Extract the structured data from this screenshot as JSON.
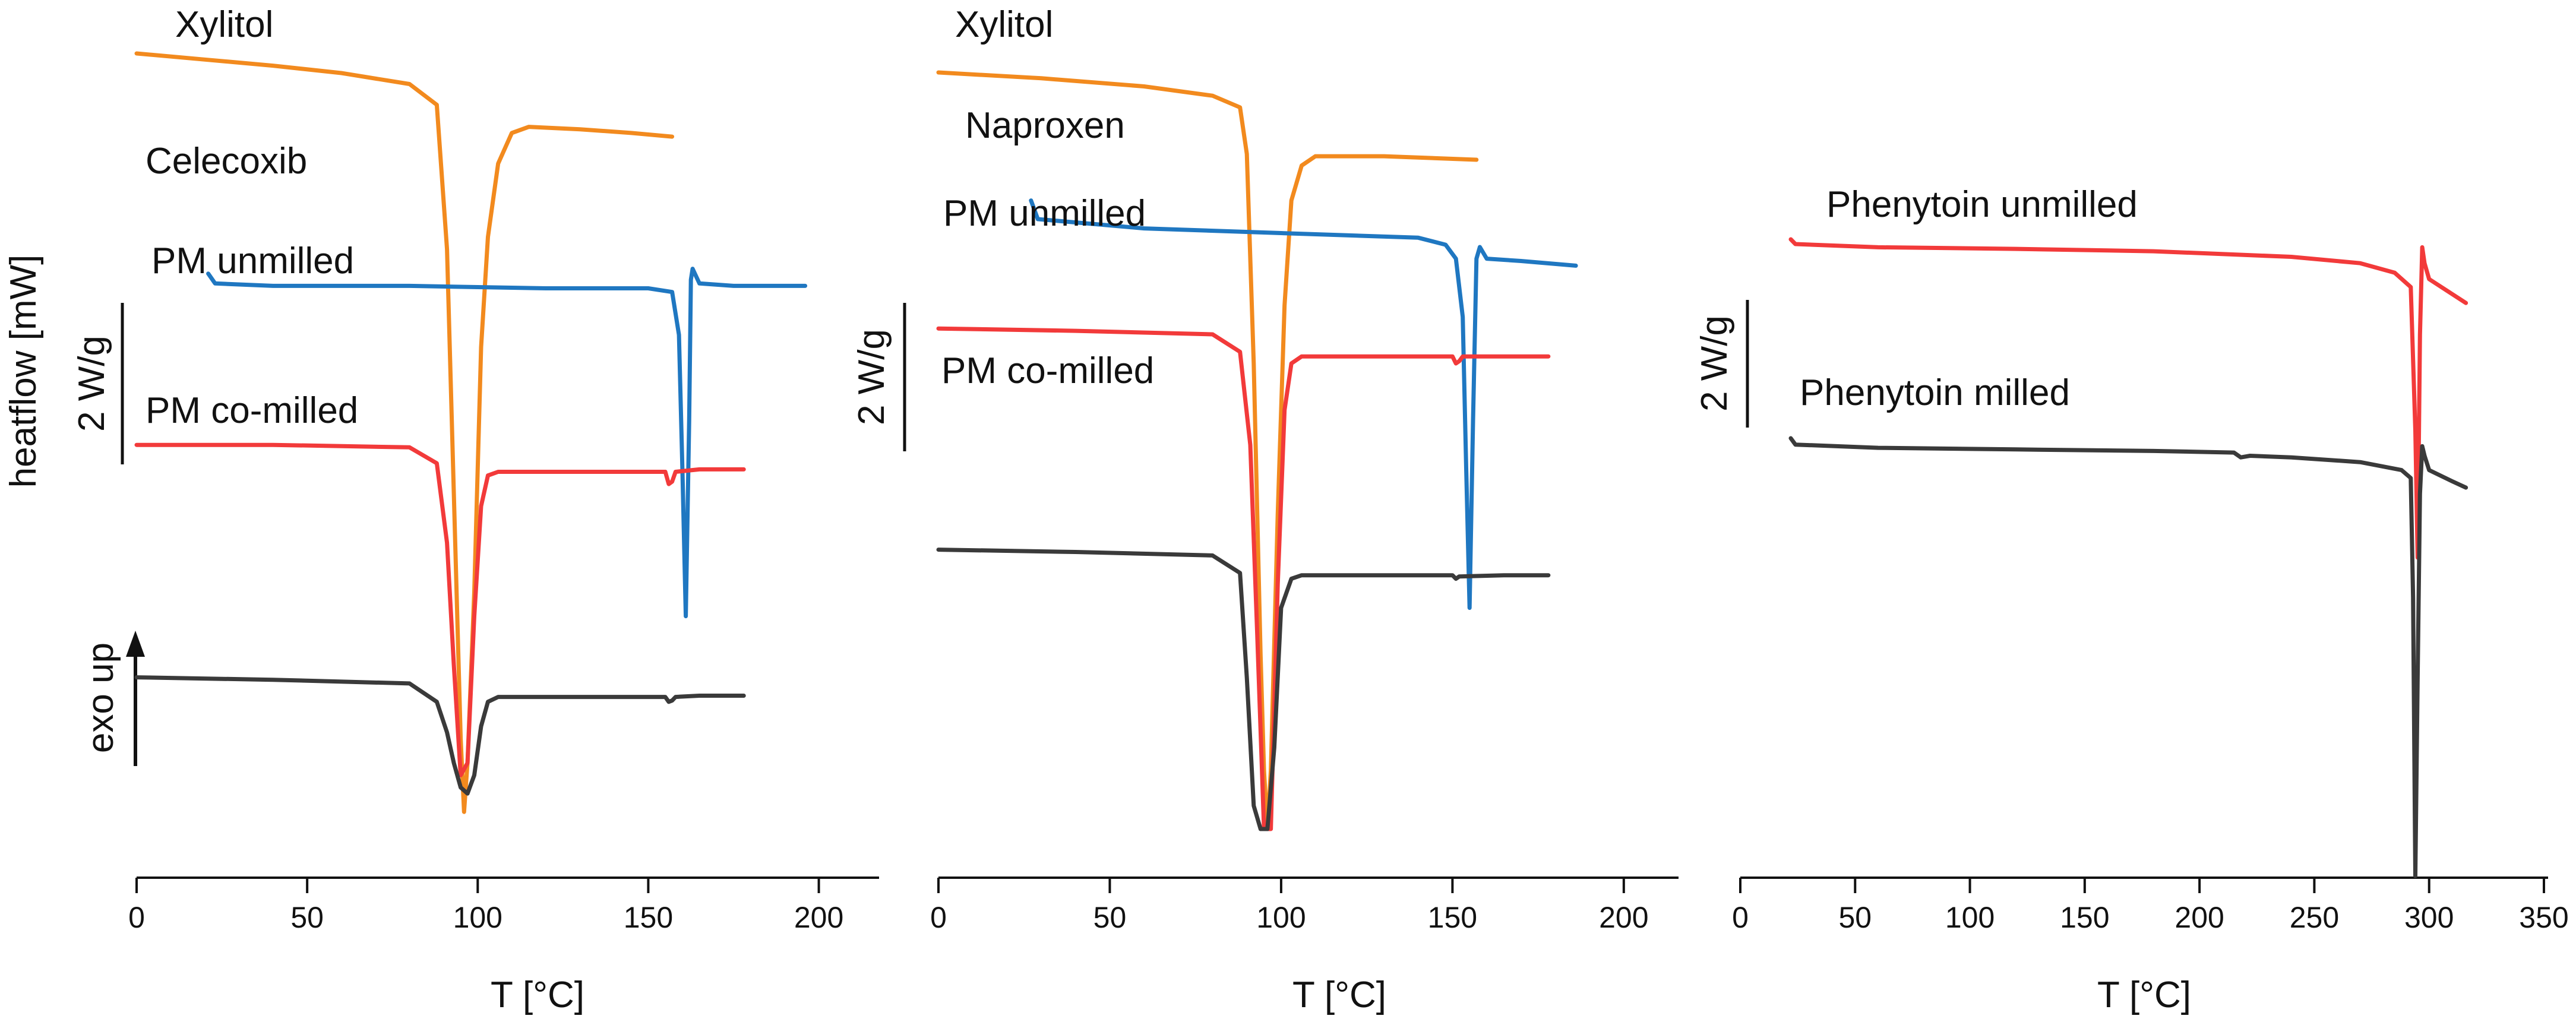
{
  "figure": {
    "ylabel": "heatflow [mW]",
    "exo_label": "exo up",
    "scale_bar_label": "2 W/g"
  },
  "colors": {
    "orange": "#f28a1e",
    "blue": "#1f77c1",
    "red": "#f23a3a",
    "dark": "#3a3a3a"
  },
  "chart_data": [
    {
      "type": "line",
      "title": "",
      "xlabel": "T [°C]",
      "ylabel": "heatflow [mW]",
      "xlim": [
        0,
        210
      ],
      "xticks": [
        0,
        50,
        100,
        150,
        200
      ],
      "grid": false,
      "scale_bar": "2 W/g",
      "series": [
        {
          "name": "Xylitol",
          "color": "#f28a1e",
          "points": [
            [
              0,
              0
            ],
            [
              20,
              -0.05
            ],
            [
              40,
              -0.1
            ],
            [
              60,
              -0.16
            ],
            [
              80,
              -0.25
            ],
            [
              88,
              -0.42
            ],
            [
              91,
              -1.6
            ],
            [
              93,
              -3.6
            ],
            [
              95,
              -5.6
            ],
            [
              96,
              -6.2
            ],
            [
              97,
              -5.8
            ],
            [
              99,
              -4.4
            ],
            [
              101,
              -2.4
            ],
            [
              103,
              -1.5
            ],
            [
              106,
              -0.9
            ],
            [
              110,
              -0.65
            ],
            [
              115,
              -0.6
            ],
            [
              130,
              -0.62
            ],
            [
              145,
              -0.65
            ],
            [
              157,
              -0.68
            ]
          ]
        },
        {
          "name": "Celecoxib",
          "color": "#1f77c1",
          "points": [
            [
              21,
              -1.8
            ],
            [
              23,
              -1.88
            ],
            [
              40,
              -1.9
            ],
            [
              80,
              -1.9
            ],
            [
              120,
              -1.92
            ],
            [
              150,
              -1.92
            ],
            [
              157,
              -1.95
            ],
            [
              159,
              -2.3
            ],
            [
              160,
              -3.4
            ],
            [
              161,
              -4.6
            ],
            [
              162,
              -3.0
            ],
            [
              162.5,
              -1.85
            ],
            [
              163,
              -1.76
            ],
            [
              165,
              -1.88
            ],
            [
              175,
              -1.9
            ],
            [
              196,
              -1.9
            ]
          ]
        },
        {
          "name": "PM unmilled",
          "color": "#f23a3a",
          "points": [
            [
              0,
              -3.2
            ],
            [
              40,
              -3.2
            ],
            [
              80,
              -3.22
            ],
            [
              88,
              -3.35
            ],
            [
              91,
              -4.0
            ],
            [
              93,
              -5.0
            ],
            [
              95,
              -5.9
            ],
            [
              97,
              -5.8
            ],
            [
              99,
              -4.6
            ],
            [
              101,
              -3.7
            ],
            [
              103,
              -3.45
            ],
            [
              106,
              -3.42
            ],
            [
              130,
              -3.42
            ],
            [
              155,
              -3.42
            ],
            [
              156,
              -3.52
            ],
            [
              157,
              -3.5
            ],
            [
              158,
              -3.42
            ],
            [
              165,
              -3.4
            ],
            [
              178,
              -3.4
            ]
          ]
        },
        {
          "name": "PM co-milled",
          "color": "#3a3a3a",
          "points": [
            [
              0,
              -5.1
            ],
            [
              40,
              -5.12
            ],
            [
              80,
              -5.15
            ],
            [
              88,
              -5.3
            ],
            [
              91,
              -5.55
            ],
            [
              93,
              -5.8
            ],
            [
              95,
              -6.0
            ],
            [
              97,
              -6.05
            ],
            [
              99,
              -5.9
            ],
            [
              101,
              -5.5
            ],
            [
              103,
              -5.3
            ],
            [
              106,
              -5.26
            ],
            [
              130,
              -5.26
            ],
            [
              155,
              -5.26
            ],
            [
              156,
              -5.3
            ],
            [
              157,
              -5.29
            ],
            [
              158,
              -5.26
            ],
            [
              165,
              -5.25
            ],
            [
              178,
              -5.25
            ]
          ]
        }
      ]
    },
    {
      "type": "line",
      "title": "",
      "xlabel": "T [°C]",
      "ylabel": "",
      "xlim": [
        0,
        208
      ],
      "xticks": [
        0,
        50,
        100,
        150,
        200
      ],
      "grid": false,
      "scale_bar": "2 W/g",
      "series": [
        {
          "name": "Xylitol",
          "color": "#f28a1e",
          "points": [
            [
              0,
              0
            ],
            [
              30,
              -0.05
            ],
            [
              60,
              -0.12
            ],
            [
              80,
              -0.2
            ],
            [
              88,
              -0.3
            ],
            [
              90,
              -0.7
            ],
            [
              92,
              -2.5
            ],
            [
              94,
              -5.0
            ],
            [
              95,
              -6.0
            ],
            [
              96,
              -6.5
            ],
            [
              97,
              -6.0
            ],
            [
              99,
              -3.8
            ],
            [
              101,
              -2.0
            ],
            [
              103,
              -1.1
            ],
            [
              106,
              -0.8
            ],
            [
              110,
              -0.72
            ],
            [
              130,
              -0.72
            ],
            [
              157,
              -0.75
            ]
          ]
        },
        {
          "name": "Naproxen",
          "color": "#1f77c1",
          "points": [
            [
              27,
              -1.1
            ],
            [
              29,
              -1.26
            ],
            [
              60,
              -1.34
            ],
            [
              100,
              -1.38
            ],
            [
              140,
              -1.42
            ],
            [
              148,
              -1.48
            ],
            [
              151,
              -1.6
            ],
            [
              153,
              -2.1
            ],
            [
              154,
              -3.4
            ],
            [
              155,
              -4.6
            ],
            [
              156,
              -3.0
            ],
            [
              157,
              -1.6
            ],
            [
              158,
              -1.5
            ],
            [
              160,
              -1.6
            ],
            [
              170,
              -1.62
            ],
            [
              186,
              -1.66
            ]
          ]
        },
        {
          "name": "PM unmilled",
          "color": "#f23a3a",
          "points": [
            [
              0,
              -2.2
            ],
            [
              40,
              -2.22
            ],
            [
              80,
              -2.25
            ],
            [
              88,
              -2.4
            ],
            [
              91,
              -3.2
            ],
            [
              93,
              -4.8
            ],
            [
              95,
              -6.5
            ],
            [
              97,
              -6.5
            ],
            [
              99,
              -4.4
            ],
            [
              101,
              -2.9
            ],
            [
              103,
              -2.5
            ],
            [
              106,
              -2.44
            ],
            [
              130,
              -2.44
            ],
            [
              150,
              -2.44
            ],
            [
              151,
              -2.5
            ],
            [
              152,
              -2.48
            ],
            [
              153,
              -2.44
            ],
            [
              165,
              -2.44
            ],
            [
              178,
              -2.44
            ]
          ]
        },
        {
          "name": "PM co-milled",
          "color": "#3a3a3a",
          "points": [
            [
              0,
              -4.1
            ],
            [
              40,
              -4.12
            ],
            [
              80,
              -4.15
            ],
            [
              88,
              -4.3
            ],
            [
              90,
              -5.2
            ],
            [
              92,
              -6.3
            ],
            [
              94,
              -6.5
            ],
            [
              96,
              -6.5
            ],
            [
              98,
              -5.8
            ],
            [
              100,
              -4.6
            ],
            [
              103,
              -4.35
            ],
            [
              106,
              -4.32
            ],
            [
              130,
              -4.32
            ],
            [
              150,
              -4.32
            ],
            [
              151,
              -4.35
            ],
            [
              152,
              -4.33
            ],
            [
              165,
              -4.32
            ],
            [
              178,
              -4.32
            ]
          ]
        }
      ]
    },
    {
      "type": "line",
      "title": "",
      "xlabel": "T [°C]",
      "ylabel": "",
      "xlim": [
        0,
        350
      ],
      "xticks": [
        0,
        50,
        100,
        150,
        200,
        250,
        300,
        350
      ],
      "grid": false,
      "scale_bar": "2 W/g",
      "series": [
        {
          "name": "Phenytoin unmilled",
          "color": "#f23a3a",
          "points": [
            [
              22,
              0
            ],
            [
              24,
              -0.06
            ],
            [
              60,
              -0.1
            ],
            [
              120,
              -0.12
            ],
            [
              180,
              -0.15
            ],
            [
              240,
              -0.22
            ],
            [
              270,
              -0.3
            ],
            [
              285,
              -0.42
            ],
            [
              292,
              -0.6
            ],
            [
              294,
              -2.4
            ],
            [
              295,
              -4.0
            ],
            [
              296,
              -1.2
            ],
            [
              297,
              -0.1
            ],
            [
              298,
              -0.3
            ],
            [
              300,
              -0.5
            ],
            [
              308,
              -0.65
            ],
            [
              316,
              -0.8
            ]
          ]
        },
        {
          "name": "Phenytoin milled",
          "color": "#3a3a3a",
          "points": [
            [
              22,
              -2.5
            ],
            [
              24,
              -2.58
            ],
            [
              60,
              -2.62
            ],
            [
              120,
              -2.64
            ],
            [
              180,
              -2.66
            ],
            [
              215,
              -2.68
            ],
            [
              218,
              -2.74
            ],
            [
              222,
              -2.72
            ],
            [
              240,
              -2.74
            ],
            [
              270,
              -2.8
            ],
            [
              288,
              -2.9
            ],
            [
              292,
              -3.0
            ],
            [
              293,
              -4.5
            ],
            [
              294,
              -8.0
            ],
            [
              295,
              -5.5
            ],
            [
              296,
              -3.2
            ],
            [
              297,
              -2.6
            ],
            [
              298,
              -2.72
            ],
            [
              300,
              -2.9
            ],
            [
              310,
              -3.04
            ],
            [
              316,
              -3.12
            ]
          ]
        }
      ]
    }
  ]
}
